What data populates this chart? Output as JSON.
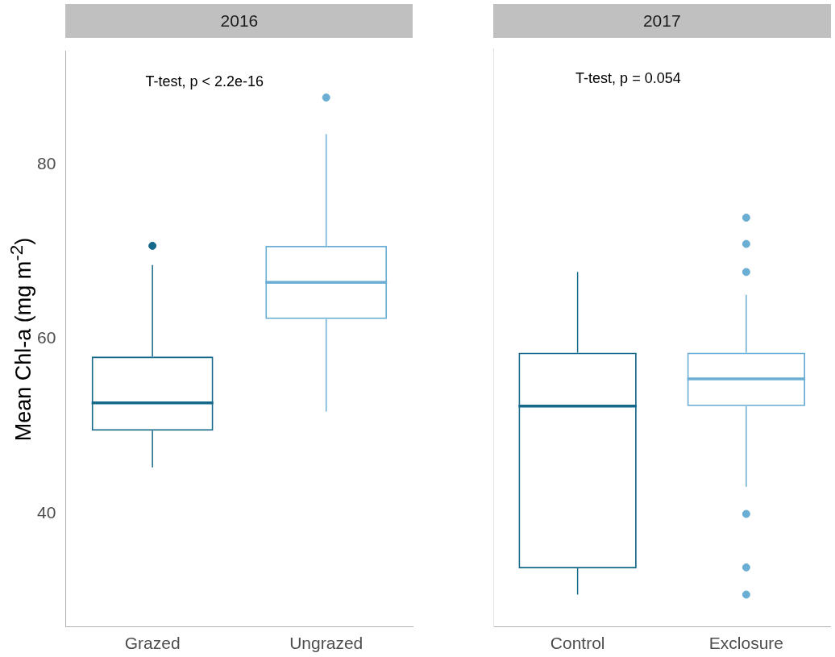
{
  "chart_data": [
    {
      "type": "box",
      "title": "2016",
      "ylabel": "Mean Chl-a (mg m$^{-2}$)",
      "categories": [
        "Grazed",
        "Ungrazed"
      ],
      "colors": [
        "#14688a",
        "#6aaed3"
      ],
      "boxes": [
        {
          "low": 45.3,
          "q1": 49.5,
          "median": 52.7,
          "q3": 58.0,
          "high": 68.5,
          "outliers": [
            70.7
          ]
        },
        {
          "low": 51.7,
          "q1": 62.3,
          "median": 66.5,
          "q3": 70.7,
          "high": 83.5,
          "outliers": [
            87.7
          ]
        }
      ],
      "ylim": [
        27,
        93
      ],
      "yticks": [
        40,
        60,
        80
      ],
      "grid": false,
      "annotations": [
        "T-test, p < 2.2e-16"
      ]
    },
    {
      "type": "box",
      "title": "2017",
      "categories": [
        "Control",
        "Exclosure"
      ],
      "colors": [
        "#14688a",
        "#6aaed3"
      ],
      "boxes": [
        {
          "low": 30.7,
          "q1": 33.7,
          "median": 52.2,
          "q3": 58.3,
          "high": 67.5
        },
        {
          "low": 43.0,
          "q1": 52.2,
          "median": 55.3,
          "q3": 58.3,
          "high": 64.9,
          "outliers": [
            73.7,
            70.7,
            67.5,
            39.9,
            33.8,
            30.7
          ]
        }
      ],
      "ylim": [
        27,
        93
      ],
      "yticks": [
        40,
        60,
        80
      ],
      "grid": false,
      "tick_labels": "x",
      "annotations": [
        "T-test, p = 0.054"
      ]
    }
  ]
}
